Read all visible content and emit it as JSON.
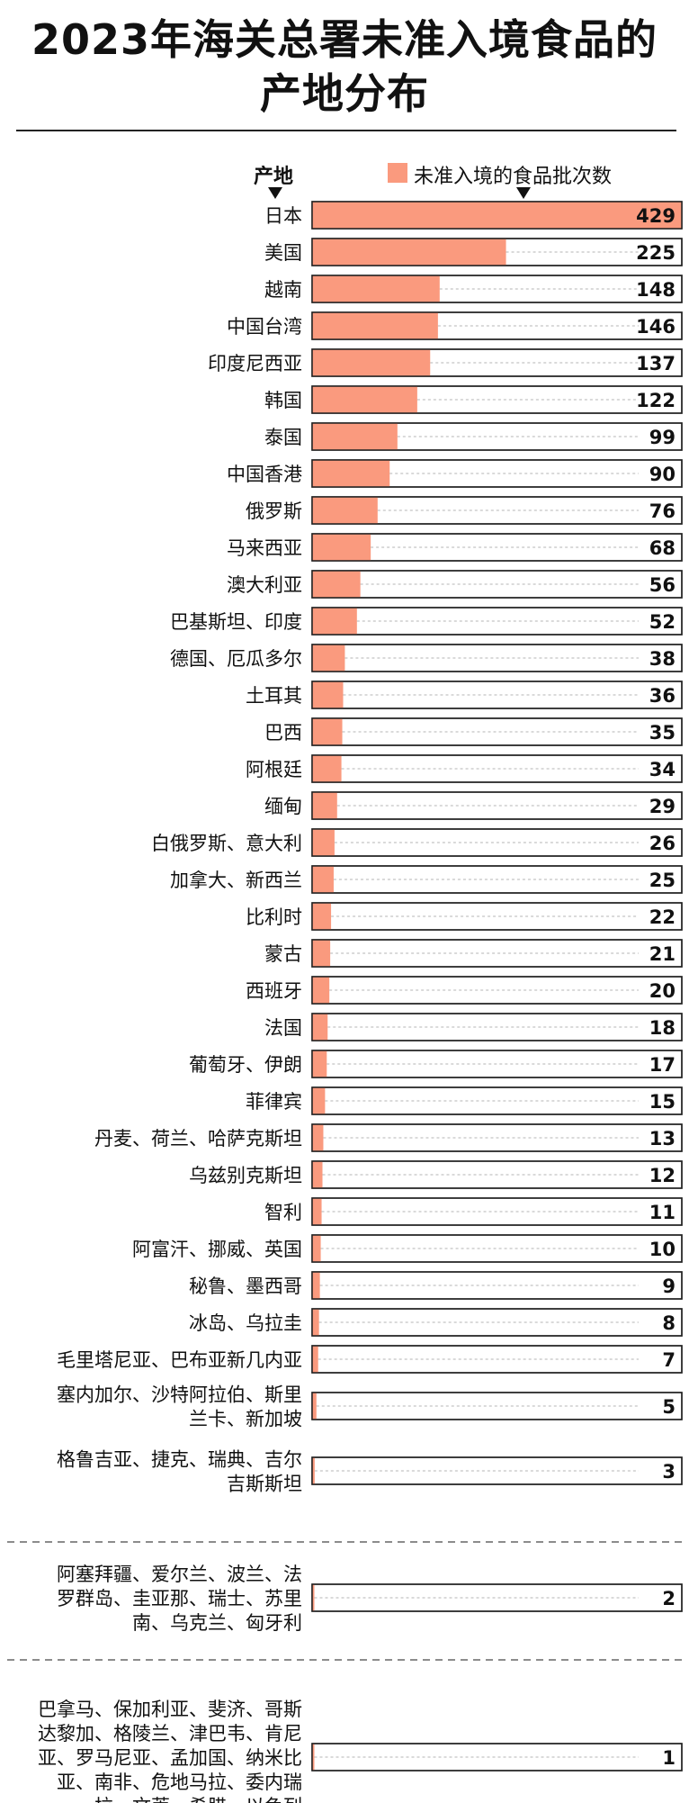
{
  "chart_data": {
    "type": "bar",
    "orientation": "horizontal",
    "title_lines": [
      "2023年海关总署未准入境食品的",
      "产地分布"
    ],
    "category_header": "产地",
    "legend": {
      "label": "未准入境的食品批次数",
      "color": "#fa9a7e",
      "position": "top-right"
    },
    "bar_color": "#fa9a7e",
    "xlim": [
      0,
      429
    ],
    "grid": false,
    "categories": [
      [
        "日本"
      ],
      [
        "美国"
      ],
      [
        "越南"
      ],
      [
        "中国台湾"
      ],
      [
        "印度尼西亚"
      ],
      [
        "韩国"
      ],
      [
        "泰国"
      ],
      [
        "中国香港"
      ],
      [
        "俄罗斯"
      ],
      [
        "马来西亚"
      ],
      [
        "澳大利亚"
      ],
      [
        "巴基斯坦、印度"
      ],
      [
        "德国、厄瓜多尔"
      ],
      [
        "土耳其"
      ],
      [
        "巴西"
      ],
      [
        "阿根廷"
      ],
      [
        "缅甸"
      ],
      [
        "白俄罗斯、意大利"
      ],
      [
        "加拿大、新西兰"
      ],
      [
        "比利时"
      ],
      [
        "蒙古"
      ],
      [
        "西班牙"
      ],
      [
        "法国"
      ],
      [
        "葡萄牙、伊朗"
      ],
      [
        "菲律宾"
      ],
      [
        "丹麦、荷兰、哈萨克斯坦"
      ],
      [
        "乌兹别克斯坦"
      ],
      [
        "智利"
      ],
      [
        "阿富汗、挪威、英国"
      ],
      [
        "秘鲁、墨西哥"
      ],
      [
        "冰岛、乌拉圭"
      ],
      [
        "毛里塔尼亚、巴布亚新几内亚"
      ],
      [
        "塞内加尔、沙特阿拉伯、斯里",
        "兰卡、新加坡"
      ],
      [
        "格鲁吉亚、捷克、瑞典、吉尔",
        "吉斯斯坦"
      ],
      [
        "阿塞拜疆、爱尔兰、波兰、法",
        "罗群岛、圭亚那、瑞士、苏里",
        "南、乌克兰、匈牙利"
      ],
      [
        "巴拿马、保加利亚、斐济、哥斯",
        "达黎加、格陵兰、津巴韦、肯尼",
        "亚、罗马尼亚、孟加国、纳米比",
        "亚、南非、危地马拉、委内瑞",
        "拉、文莱、希腊、以色列"
      ]
    ],
    "values": [
      429,
      225,
      148,
      146,
      137,
      122,
      99,
      90,
      76,
      68,
      56,
      52,
      38,
      36,
      35,
      34,
      29,
      26,
      25,
      22,
      21,
      20,
      18,
      17,
      15,
      13,
      12,
      11,
      10,
      9,
      8,
      7,
      5,
      3,
      2,
      1
    ]
  }
}
